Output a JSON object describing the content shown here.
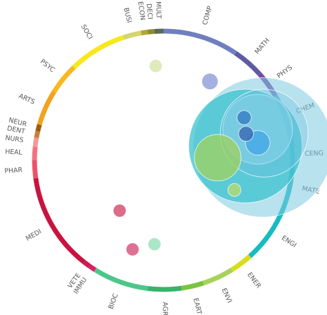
{
  "chart_data": {
    "type": "bubble-ring",
    "categories": [
      {
        "label": "COMP",
        "color": "#6f7fbf",
        "start_deg": 0,
        "end_deg": 34
      },
      {
        "label": "MATH",
        "color": "#5e5aa3",
        "start_deg": 34,
        "end_deg": 48
      },
      {
        "label": "PHYS",
        "color": "#7b48a8",
        "start_deg": 48,
        "end_deg": 60
      },
      {
        "label": "CHEM",
        "color": "#2fa9c9",
        "start_deg": 60,
        "end_deg": 80
      },
      {
        "label": "CENG",
        "color": "#26b5c4",
        "start_deg": 80,
        "end_deg": 95
      },
      {
        "label": "MATE",
        "color": "#22b7c5",
        "start_deg": 95,
        "end_deg": 108
      },
      {
        "label": "ENGI",
        "color": "#17bcc0",
        "start_deg": 108,
        "end_deg": 138
      },
      {
        "label": "ENER",
        "color": "#d6dd1b",
        "start_deg": 138,
        "end_deg": 148
      },
      {
        "label": "ENVI",
        "color": "#a7d359",
        "start_deg": 148,
        "end_deg": 162
      },
      {
        "label": "EART",
        "color": "#7cc43f",
        "start_deg": 162,
        "end_deg": 172
      },
      {
        "label": "AGRI",
        "color": "#37b36a",
        "start_deg": 172,
        "end_deg": 187
      },
      {
        "label": "BIOC",
        "color": "#4cc78a",
        "start_deg": 187,
        "end_deg": 212
      },
      {
        "label": "IMMU",
        "color": "#d62266",
        "start_deg": 212,
        "end_deg": 215
      },
      {
        "label": "VETE",
        "color": "#cc1b52",
        "start_deg": 215,
        "end_deg": 218
      },
      {
        "label": "MEDI",
        "color": "#c8143f",
        "start_deg": 218,
        "end_deg": 262
      },
      {
        "label": "PHAR",
        "color": "#ef5167",
        "start_deg": 262,
        "end_deg": 270
      },
      {
        "label": "HEAL",
        "color": "#f2717e",
        "start_deg": 270,
        "end_deg": 276
      },
      {
        "label": "NURS",
        "color": "#f19a9c",
        "start_deg": 276,
        "end_deg": 280
      },
      {
        "label": "DENT",
        "color": "#c7813a",
        "start_deg": 280,
        "end_deg": 283
      },
      {
        "label": "NEUR",
        "color": "#9c5a14",
        "start_deg": 283,
        "end_deg": 286
      },
      {
        "label": "ARTS",
        "color": "#f3a31f",
        "start_deg": 286,
        "end_deg": 302
      },
      {
        "label": "PSYC",
        "color": "#f8b820",
        "start_deg": 302,
        "end_deg": 316
      },
      {
        "label": "SOCI",
        "color": "#f7e81c",
        "start_deg": 316,
        "end_deg": 342
      },
      {
        "label": "BUSI",
        "color": "#d5d46e",
        "start_deg": 342,
        "end_deg": 350
      },
      {
        "label": "ECON",
        "color": "#b5a637",
        "start_deg": 350,
        "end_deg": 353
      },
      {
        "label": "DECI",
        "color": "#8f8a2c",
        "start_deg": 353,
        "end_deg": 356
      },
      {
        "label": "MULT",
        "color": "#576b56",
        "start_deg": 356,
        "end_deg": 360
      }
    ],
    "bubbles": [
      {
        "category": "MATE",
        "color": "#7ccbe0",
        "opacity": 0.55,
        "x": 0.77,
        "y": 0.1,
        "size": 0.54
      },
      {
        "category": "CENG",
        "color": "#3cc1cf",
        "opacity": 0.75,
        "x": 0.635,
        "y": 0.11,
        "size": 0.44
      },
      {
        "category": "CHEM",
        "color": "#a6def0",
        "opacity": 0.45,
        "x": 0.73,
        "y": 0.24,
        "size": 0.27
      },
      {
        "category": "PHYS",
        "color": "#6fc1e3",
        "opacity": 0.35,
        "x": 0.78,
        "y": 0.21,
        "size": 0.34
      },
      {
        "category": "CHEM",
        "color": "#42a8e6",
        "opacity": 0.8,
        "x": 0.73,
        "y": 0.135,
        "size": 0.095
      },
      {
        "category": "ENGI",
        "color": "#9fd25c",
        "opacity": 0.75,
        "x": 0.42,
        "y": 0.02,
        "size": 0.18
      },
      {
        "category": "MATH",
        "color": "#3c6db7",
        "opacity": 0.85,
        "x": 0.64,
        "y": 0.205,
        "size": 0.058
      },
      {
        "category": "COMP",
        "color": "#3a80c6",
        "opacity": 0.85,
        "x": 0.625,
        "y": 0.33,
        "size": 0.055
      },
      {
        "category": "COMP",
        "color": "#7d8ed2",
        "opacity": 0.7,
        "x": 0.36,
        "y": 0.61,
        "size": 0.063
      },
      {
        "category": "BUSI",
        "color": "#d5e3a6",
        "opacity": 0.75,
        "x": -0.06,
        "y": 0.73,
        "size": 0.05
      },
      {
        "category": "ENVI",
        "color": "#b6d86e",
        "opacity": 0.8,
        "x": 0.55,
        "y": -0.23,
        "size": 0.05
      },
      {
        "category": "MEDI",
        "color": "#d4476b",
        "opacity": 0.8,
        "x": -0.34,
        "y": -0.39,
        "size": 0.05
      },
      {
        "category": "MEDI",
        "color": "#d54e78",
        "opacity": 0.8,
        "x": -0.24,
        "y": -0.69,
        "size": 0.05
      },
      {
        "category": "BIOC",
        "color": "#9fe0c0",
        "opacity": 0.85,
        "x": -0.07,
        "y": -0.65,
        "size": 0.05
      }
    ]
  }
}
